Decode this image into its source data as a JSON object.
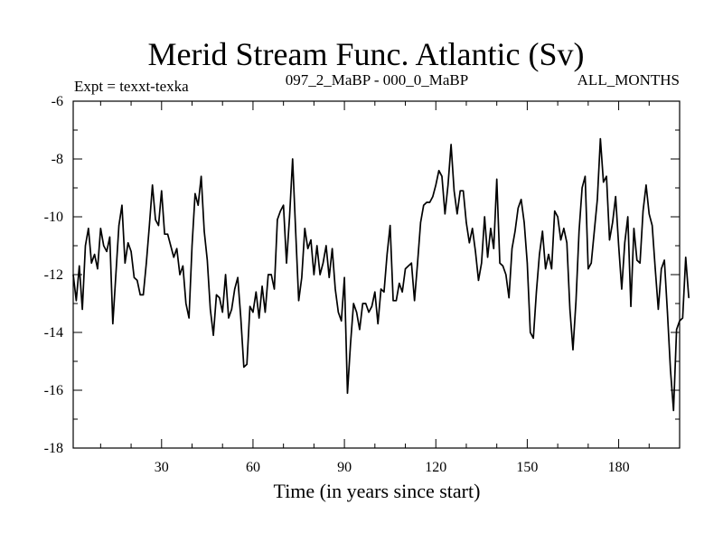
{
  "chart_data": {
    "type": "line",
    "title": "Merid Stream Func. Atlantic (Sv)",
    "subtitle_left": "Expt = texxt-texka",
    "subtitle_center": "097_2_MaBP - 000_0_MaBP",
    "subtitle_right": "ALL_MONTHS",
    "xlabel": "Time (in years since start)",
    "ylabel": "",
    "xlim": [
      1,
      200
    ],
    "ylim": [
      -18,
      -6
    ],
    "xticks": [
      30,
      60,
      90,
      120,
      150,
      180
    ],
    "xtick_labels": [
      "30",
      "60",
      "90",
      "120",
      "150",
      "180"
    ],
    "yticks": [
      -6,
      -8,
      -10,
      -12,
      -14,
      -16,
      -18
    ],
    "ytick_labels": [
      "-6",
      "-8",
      "-10",
      "-12",
      "-14",
      "-16",
      "-18"
    ],
    "grid": false,
    "line_color": "#000000",
    "series": [
      {
        "name": "Merid Stream Func. Atlantic",
        "x_start": 1,
        "x_step": 1,
        "values": [
          -12.0,
          -12.9,
          -11.7,
          -13.2,
          -11.0,
          -10.4,
          -11.6,
          -11.3,
          -11.8,
          -10.4,
          -11.0,
          -11.2,
          -10.7,
          -13.7,
          -12.0,
          -10.3,
          -9.6,
          -11.6,
          -10.9,
          -11.2,
          -12.1,
          -12.2,
          -12.7,
          -12.7,
          -11.6,
          -10.3,
          -8.9,
          -10.1,
          -10.3,
          -9.1,
          -10.6,
          -10.6,
          -11.0,
          -11.4,
          -11.1,
          -12.0,
          -11.7,
          -13.0,
          -13.5,
          -11.0,
          -9.2,
          -9.6,
          -8.6,
          -10.5,
          -11.5,
          -13.2,
          -14.1,
          -12.7,
          -12.8,
          -13.3,
          -12.0,
          -13.5,
          -13.2,
          -12.5,
          -12.1,
          -13.5,
          -15.2,
          -15.1,
          -13.1,
          -13.3,
          -12.6,
          -13.5,
          -12.4,
          -13.3,
          -12.0,
          -12.0,
          -12.5,
          -10.1,
          -9.8,
          -9.6,
          -11.6,
          -10.0,
          -8.0,
          -10.5,
          -12.9,
          -12.1,
          -10.4,
          -11.1,
          -10.8,
          -12.0,
          -11.0,
          -12.0,
          -11.6,
          -11.0,
          -12.1,
          -11.1,
          -12.5,
          -13.3,
          -13.6,
          -12.1,
          -16.1,
          -14.4,
          -13.0,
          -13.3,
          -13.9,
          -13.0,
          -13.0,
          -13.3,
          -13.1,
          -12.6,
          -13.7,
          -12.5,
          -12.6,
          -11.3,
          -10.3,
          -12.9,
          -12.9,
          -12.3,
          -12.6,
          -11.8,
          -11.7,
          -11.6,
          -12.9,
          -11.6,
          -10.2,
          -9.6,
          -9.5,
          -9.5,
          -9.3,
          -8.9,
          -8.4,
          -8.6,
          -9.9,
          -8.9,
          -7.5,
          -9.1,
          -9.9,
          -9.1,
          -9.1,
          -10.2,
          -10.9,
          -10.4,
          -11.2,
          -12.2,
          -11.6,
          -10.0,
          -11.4,
          -10.4,
          -11.1,
          -8.7,
          -11.6,
          -11.7,
          -12.0,
          -12.8,
          -11.1,
          -10.5,
          -9.7,
          -9.4,
          -10.2,
          -11.6,
          -14.0,
          -14.2,
          -12.6,
          -11.3,
          -10.5,
          -11.8,
          -11.3,
          -11.8,
          -9.8,
          -10.0,
          -10.8,
          -10.4,
          -10.9,
          -13.2,
          -14.6,
          -12.9,
          -10.5,
          -9.0,
          -8.6,
          -11.8,
          -11.6,
          -10.5,
          -9.4,
          -7.3,
          -8.8,
          -8.6,
          -10.8,
          -10.2,
          -9.3,
          -11.0,
          -12.5,
          -10.9,
          -10.0,
          -13.1,
          -10.4,
          -11.5,
          -11.6,
          -9.8,
          -8.9,
          -9.9,
          -10.3,
          -11.8,
          -13.2,
          -11.8,
          -11.5,
          -13.3,
          -15.3,
          -16.7,
          -13.9,
          -13.6,
          -13.5,
          -11.4,
          -12.8
        ]
      }
    ]
  }
}
